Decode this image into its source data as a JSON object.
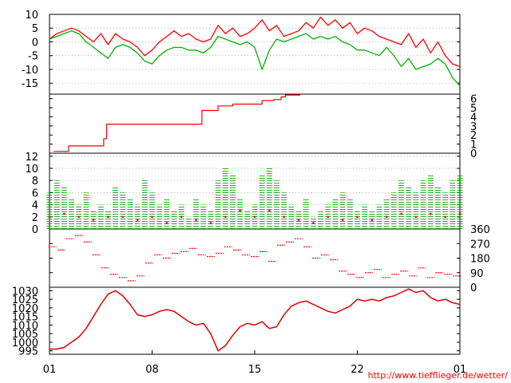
{
  "credit": "http://www.tiefflieger.de/wetter/",
  "colors": {
    "temperature": "#ff0000",
    "dewpoint": "#00b000",
    "rain": "#ff0000",
    "wind_speed": "#00a000",
    "wind_gust": "#ff0000",
    "wind_direction": "#ff0000",
    "pressure": "#dd0000",
    "grid": "#999999",
    "axis": "#000000"
  },
  "chart_data": [
    {
      "type": "line",
      "title": "",
      "x_ticks": [
        "01",
        "08",
        "15",
        "22",
        "01"
      ],
      "y_ticks": [
        "10",
        "5",
        "0",
        "-5",
        "-10",
        "-15"
      ],
      "ylim": [
        -19,
        10
      ],
      "xlim": [
        0,
        28
      ],
      "grid": true,
      "series": [
        {
          "key": "temperature",
          "x": [
            0,
            0.5,
            1,
            1.5,
            2,
            2.5,
            3,
            3.5,
            4,
            4.5,
            5,
            5.5,
            6,
            6.5,
            7,
            7.5,
            8,
            8.5,
            9,
            9.5,
            10,
            10.5,
            11,
            11.5,
            12,
            12.5,
            13,
            13.5,
            14,
            14.5,
            15,
            15.5,
            16,
            16.5,
            17,
            17.5,
            18,
            18.5,
            19,
            19.5,
            20,
            20.5,
            21,
            21.5,
            22,
            22.5,
            23,
            23.5,
            24,
            24.5,
            25,
            25.5,
            26,
            26.5,
            27,
            27.5,
            28
          ],
          "y": [
            1,
            3,
            4,
            5,
            4,
            2,
            0,
            3,
            -1,
            3,
            1,
            0,
            -2,
            -5,
            -3,
            0,
            2,
            4,
            2,
            3,
            1,
            0,
            1,
            6,
            3,
            5,
            2,
            3,
            5,
            8,
            4,
            6,
            2,
            3,
            4,
            7,
            5,
            9,
            6,
            8,
            5,
            7,
            3,
            5,
            4,
            2,
            1,
            0,
            -1,
            3,
            -2,
            1,
            -4,
            0,
            -5,
            -8,
            -9
          ]
        },
        {
          "key": "dewpoint",
          "x": [
            0,
            0.5,
            1,
            1.5,
            2,
            2.5,
            3,
            3.5,
            4,
            4.5,
            5,
            5.5,
            6,
            6.5,
            7,
            7.5,
            8,
            8.5,
            9,
            9.5,
            10,
            10.5,
            11,
            11.5,
            12,
            12.5,
            13,
            13.5,
            14,
            14.5,
            15,
            15.5,
            16,
            16.5,
            17,
            17.5,
            18,
            18.5,
            19,
            19.5,
            20,
            20.5,
            21,
            21.5,
            22,
            22.5,
            23,
            23.5,
            24,
            24.5,
            25,
            25.5,
            26,
            26.5,
            27,
            27.5,
            28
          ],
          "y": [
            1,
            2,
            3,
            4,
            3,
            0,
            -2,
            -4,
            -6,
            -2,
            -1,
            -2,
            -4,
            -7,
            -8,
            -5,
            -3,
            -2,
            -2,
            -3,
            -3,
            -4,
            -2,
            2,
            1,
            0,
            -1,
            0,
            -2,
            -10,
            -3,
            1,
            0,
            1,
            2,
            3,
            1,
            2,
            1,
            2,
            0,
            -1,
            -3,
            -3,
            -4,
            -5,
            -2,
            -5,
            -9,
            -6,
            -10,
            -9,
            -8,
            -6,
            -8,
            -13,
            -16
          ]
        }
      ]
    },
    {
      "type": "line",
      "title": "",
      "y_ticks": [
        "6",
        "5",
        "4",
        "3",
        "2",
        "1",
        "0"
      ],
      "ylim": [
        0,
        6.5
      ],
      "xlim": [
        0,
        28
      ],
      "series": [
        {
          "key": "rain",
          "x": [
            0.3,
            1.3,
            1.3,
            3.7,
            3.7,
            3.9,
            3.9,
            10.4,
            10.4,
            11.5,
            11.5,
            12.5,
            12.5,
            14.5,
            14.5,
            15.3,
            15.3,
            15.8,
            15.8,
            16.1,
            16.1,
            17.1
          ],
          "y": [
            0.2,
            0.2,
            0.8,
            0.8,
            1.6,
            1.6,
            3.2,
            3.2,
            4.7,
            4.7,
            5.2,
            5.2,
            5.4,
            5.4,
            5.8,
            5.8,
            5.9,
            5.9,
            6.2,
            6.2,
            6.4,
            6.4
          ]
        }
      ]
    },
    {
      "type": "area",
      "title": "",
      "y_ticks": [
        "12",
        "10",
        "8",
        "6",
        "4",
        "2",
        "0"
      ],
      "ylim": [
        0,
        12.5
      ],
      "xlim": [
        0,
        28
      ],
      "series": [
        {
          "key": "wind_speed",
          "x": [
            0,
            0.5,
            1,
            1.5,
            2,
            2.5,
            3,
            3.5,
            4,
            4.5,
            5,
            5.5,
            6,
            6.5,
            7,
            7.5,
            8,
            8.5,
            9,
            9.5,
            10,
            10.5,
            11,
            11.5,
            12,
            12.5,
            13,
            13.5,
            14,
            14.5,
            15,
            15.5,
            16,
            16.5,
            17,
            17.5,
            18,
            18.5,
            19,
            19.5,
            20,
            20.5,
            21,
            21.5,
            22,
            22.5,
            23,
            23.5,
            24,
            24.5,
            25,
            25.5,
            26,
            26.5,
            27,
            27.5,
            28
          ],
          "y": [
            6,
            8,
            7,
            5,
            4,
            6,
            3,
            4,
            3,
            7,
            6,
            5,
            4,
            8,
            6,
            4,
            5,
            3,
            4,
            2,
            5,
            4,
            3,
            8,
            10,
            9,
            5,
            3,
            4,
            9,
            10,
            8,
            6,
            4,
            3,
            5,
            2,
            3,
            4,
            5,
            6,
            5,
            3,
            4,
            3,
            4,
            5,
            6,
            8,
            7,
            6,
            8,
            9,
            7,
            6,
            8,
            9
          ]
        },
        {
          "key": "wind_gust",
          "x": [
            0,
            1,
            2,
            3,
            4,
            5,
            6,
            7,
            8,
            9,
            10,
            11,
            12,
            13,
            14,
            15,
            16,
            17,
            18,
            19,
            20,
            21,
            22,
            23,
            24,
            25,
            26,
            27,
            28
          ],
          "y": [
            2,
            2.5,
            2,
            1.5,
            2,
            2,
            1.5,
            2,
            1,
            2,
            1.5,
            1,
            2,
            3,
            2,
            3,
            2,
            1.5,
            1,
            2,
            1.5,
            2,
            1.5,
            2,
            2.5,
            2,
            2.5,
            2,
            2.5
          ]
        }
      ]
    },
    {
      "type": "scatter",
      "title": "",
      "y_ticks": [
        "360",
        "270",
        "180",
        "90",
        "0"
      ],
      "ylim": [
        0,
        360
      ],
      "xlim": [
        0,
        28
      ],
      "series": [
        {
          "key": "wind_direction",
          "x": [
            0.2,
            0.8,
            1.4,
            2,
            2.6,
            3.2,
            3.8,
            4.4,
            5,
            5.6,
            6.2,
            6.8,
            7.4,
            8,
            8.6,
            9.2,
            9.8,
            10.4,
            11,
            11.6,
            12.2,
            12.8,
            13.4,
            14,
            14.6,
            15.2,
            15.8,
            16.4,
            17,
            17.6,
            18.2,
            18.8,
            19.4,
            20,
            20.6,
            21.2,
            21.8,
            22.4,
            23,
            23.6,
            24.2,
            24.8,
            25.4,
            26,
            26.6,
            27.2,
            27.8
          ],
          "y": [
            250,
            230,
            300,
            320,
            280,
            200,
            120,
            80,
            60,
            40,
            70,
            150,
            200,
            180,
            210,
            220,
            240,
            200,
            190,
            210,
            250,
            230,
            200,
            190,
            220,
            160,
            260,
            280,
            300,
            250,
            180,
            200,
            170,
            100,
            80,
            60,
            90,
            110,
            60,
            80,
            100,
            70,
            120,
            60,
            90,
            80,
            70
          ]
        }
      ]
    },
    {
      "type": "line",
      "title": "",
      "x_ticks": [
        "01",
        "08",
        "15",
        "22",
        "01"
      ],
      "y_ticks": [
        "1030",
        "1025",
        "1020",
        "1015",
        "1010",
        "1005",
        "1000",
        "995"
      ],
      "ylim": [
        993,
        1032
      ],
      "xlim": [
        0,
        28
      ],
      "series": [
        {
          "key": "pressure",
          "x": [
            0,
            0.5,
            1,
            1.5,
            2,
            2.5,
            3,
            3.5,
            4,
            4.5,
            5,
            5.5,
            6,
            6.5,
            7,
            7.5,
            8,
            8.5,
            9,
            9.5,
            10,
            10.5,
            11,
            11.5,
            12,
            12.5,
            13,
            13.5,
            14,
            14.5,
            15,
            15.5,
            16,
            16.5,
            17,
            17.5,
            18,
            18.5,
            19,
            19.5,
            20,
            20.5,
            21,
            21.5,
            22,
            22.5,
            23,
            23.5,
            24,
            24.5,
            25,
            25.5,
            26,
            26.5,
            27,
            27.5,
            28
          ],
          "y": [
            996,
            996,
            997,
            1000,
            1003,
            1008,
            1015,
            1022,
            1028,
            1030,
            1027,
            1022,
            1016,
            1015,
            1016,
            1018,
            1019,
            1018,
            1015,
            1012,
            1010,
            1011,
            1005,
            995,
            998,
            1004,
            1009,
            1011,
            1010,
            1012,
            1008,
            1009,
            1016,
            1021,
            1023,
            1024,
            1022,
            1020,
            1018,
            1017,
            1019,
            1021,
            1025,
            1024,
            1025,
            1024,
            1026,
            1027,
            1029,
            1031,
            1029,
            1030,
            1026,
            1024,
            1025,
            1023,
            1022
          ]
        }
      ]
    }
  ]
}
